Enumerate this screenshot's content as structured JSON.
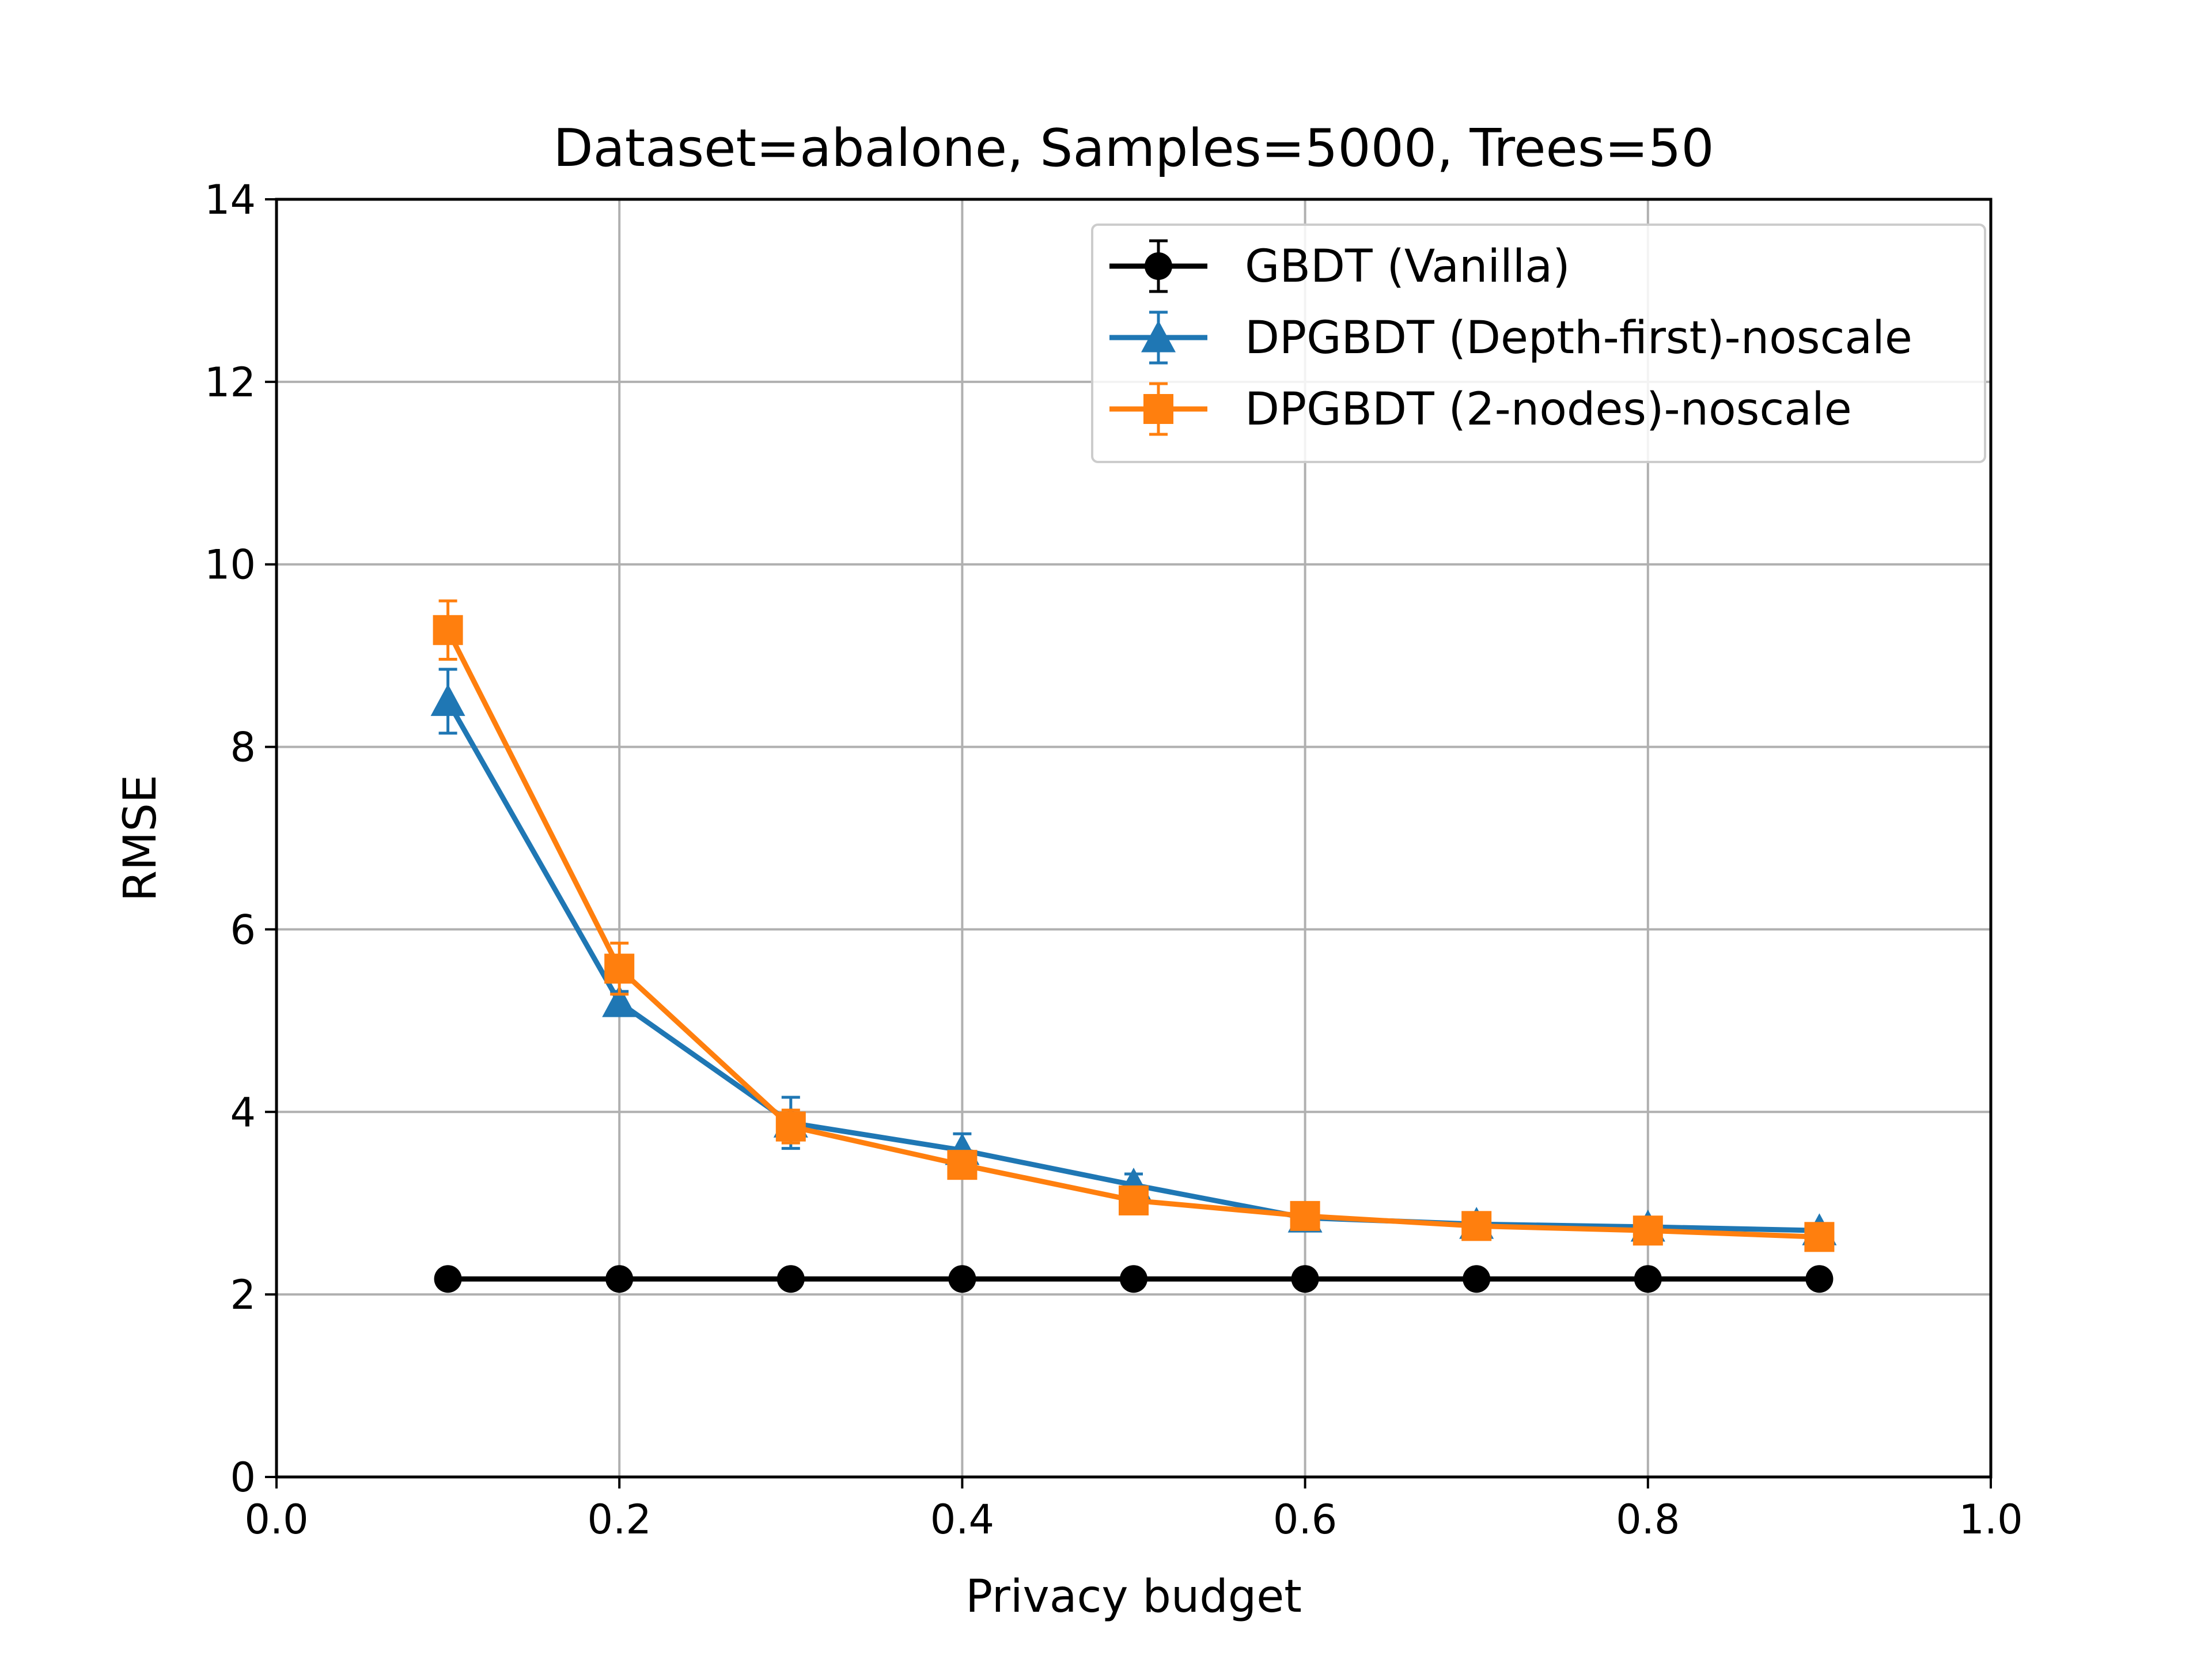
{
  "chart_data": {
    "type": "line",
    "title": "Dataset=abalone, Samples=5000, Trees=50",
    "xlabel": "Privacy budget",
    "ylabel": "RMSE",
    "xlim": [
      0.0,
      1.0
    ],
    "ylim": [
      0,
      14
    ],
    "xticks": [
      "0.0",
      "0.2",
      "0.4",
      "0.6",
      "0.8",
      "1.0"
    ],
    "yticks": [
      "0",
      "2",
      "4",
      "6",
      "8",
      "10",
      "12",
      "14"
    ],
    "grid": true,
    "legend_position": "top-right",
    "x": [
      0.1,
      0.2,
      0.3,
      0.4,
      0.5,
      0.6,
      0.7,
      0.8,
      0.9
    ],
    "series": [
      {
        "name": "GBDT (Vanilla)",
        "color": "#000000",
        "marker": "circle",
        "values": [
          2.17,
          2.17,
          2.17,
          2.17,
          2.17,
          2.17,
          2.17,
          2.17,
          2.17
        ],
        "errors": [
          0.0,
          0.0,
          0.0,
          0.0,
          0.0,
          0.0,
          0.0,
          0.0,
          0.0
        ]
      },
      {
        "name": "DPGBDT (Depth-first)-noscale",
        "color": "#1f77b4",
        "marker": "triangle",
        "values": [
          8.5,
          5.2,
          3.88,
          3.58,
          3.2,
          2.84,
          2.77,
          2.74,
          2.7
        ],
        "errors": [
          0.35,
          0.12,
          0.28,
          0.18,
          0.12,
          0.05,
          0.04,
          0.04,
          0.04
        ]
      },
      {
        "name": "DPGBDT (2-nodes)-noscale",
        "color": "#ff7f0e",
        "marker": "square",
        "values": [
          9.28,
          5.57,
          3.84,
          3.42,
          3.03,
          2.86,
          2.75,
          2.7,
          2.63
        ],
        "errors": [
          0.32,
          0.28,
          0.18,
          0.12,
          0.1,
          0.06,
          0.05,
          0.05,
          0.05
        ]
      }
    ]
  }
}
